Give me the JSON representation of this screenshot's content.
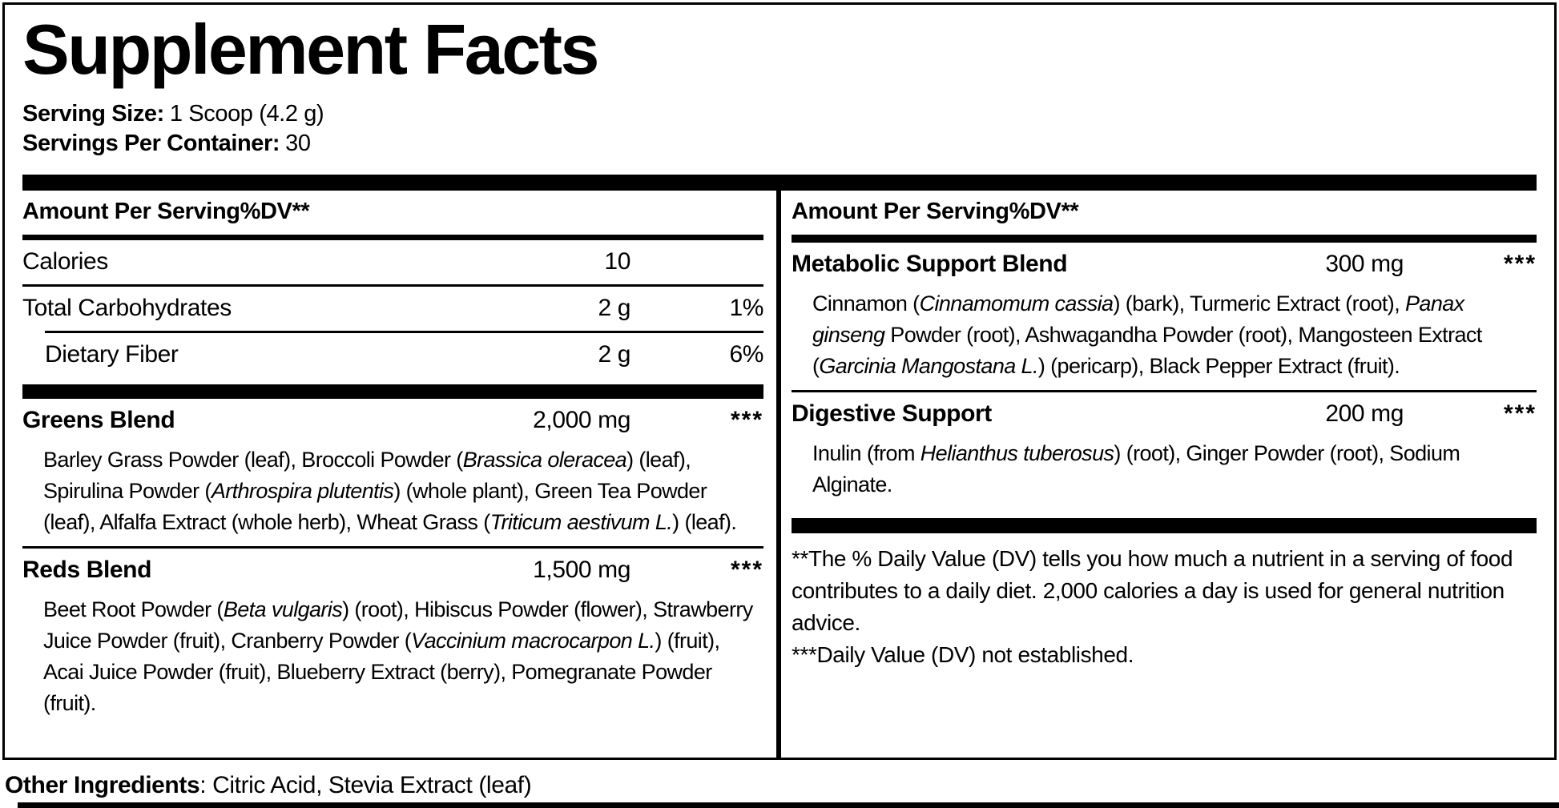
{
  "colors": {
    "ink": "#000000",
    "background": "#ffffff"
  },
  "title": "Supplement Facts",
  "serving_info": {
    "size_label": "Serving Size:",
    "size_value": "1 Scoop (4.2 g)",
    "per_container_label": "Servings Per Container:",
    "per_container_value": "30"
  },
  "left_column": {
    "header": {
      "amount": "Amount Per Serving",
      "dv": "%DV**"
    },
    "nutrients": [
      {
        "name": "Calories",
        "amount": "10",
        "dv": ""
      },
      {
        "name": "Total Carbohydrates",
        "amount": "2 g",
        "dv": "1%"
      },
      {
        "name": "Dietary Fiber",
        "amount": "2 g",
        "dv": "6%"
      }
    ],
    "blends": [
      {
        "name": "Greens Blend",
        "amount": "2,000 mg",
        "dv": "***",
        "ingredients": "Barley Grass Powder (leaf), Broccoli Powder (~Brassica oleracea~) (leaf), Spirulina Powder (~Arthrospira plutentis~) (whole plant), Green Tea Powder (leaf), Alfalfa Extract (whole herb), Wheat Grass (~Triticum aestivum L.~) (leaf)."
      },
      {
        "name": "Reds Blend",
        "amount": "1,500 mg",
        "dv": "***",
        "ingredients": "Beet Root Powder (~Beta vulgaris~) (root), Hibiscus Powder (flower), Strawberry Juice Powder (fruit), Cranberry Powder (~Vaccinium macrocarpon L.~) (fruit), Acai Juice Powder (fruit), Blueberry Extract (berry), Pomegranate Powder (fruit)."
      }
    ]
  },
  "right_column": {
    "header": {
      "amount": "Amount Per Serving",
      "dv": "%DV**"
    },
    "blends": [
      {
        "name": "Metabolic Support Blend",
        "amount": "300 mg",
        "dv": "***",
        "ingredients": "Cinnamon (~Cinnamomum cassia~) (bark), Turmeric Extract (root), ~Panax ginseng~ Powder (root), Ashwagandha Powder (root), Mangosteen Extract (~Garcinia Mangostana L.~) (pericarp), Black Pepper Extract (fruit)."
      },
      {
        "name": "Digestive Support",
        "amount": "200 mg",
        "dv": "***",
        "ingredients": "Inulin (from ~Helianthus tuberosus~) (root), Ginger Powder (root), Sodium Alginate."
      }
    ],
    "footnotes": [
      "**The % Daily Value (DV) tells you how much a nutrient in a serving of food contributes to a daily diet. 2,000 calories a day is used for general nutrition advice.",
      "***Daily Value (DV) not established."
    ]
  },
  "other_ingredients": {
    "label": "Other Ingredients",
    "value": ": Citric Acid, Stevia Extract (leaf)"
  }
}
